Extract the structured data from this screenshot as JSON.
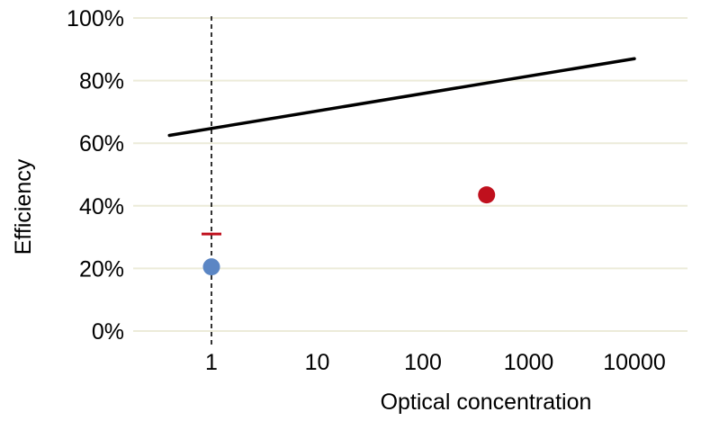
{
  "chart_data": {
    "type": "scatter",
    "xlabel": "Optical concentration",
    "ylabel": "Efficiency",
    "x_scale": "log",
    "xlim": [
      0.4,
      30000
    ],
    "ylim": [
      0,
      100
    ],
    "x_ticks": [
      1,
      10,
      100,
      1000,
      10000
    ],
    "x_tick_labels": [
      "1",
      "10",
      "100",
      "1000",
      "10000"
    ],
    "y_ticks": [
      0,
      20,
      40,
      60,
      80,
      100
    ],
    "y_tick_labels": [
      "0%",
      "20%",
      "40%",
      "60%",
      "80%",
      "100%"
    ],
    "grid": "horizontal",
    "grid_color": "#ecebd9",
    "reference_line": {
      "x": 1,
      "style": "dashed",
      "color": "#000000"
    },
    "limit_line": {
      "x": [
        0.4,
        10000
      ],
      "y": [
        62.5,
        87
      ],
      "color": "#000000"
    },
    "points": [
      {
        "x": 1,
        "y": 20.5,
        "color": "#5b86c4"
      },
      {
        "x": 400,
        "y": 43.5,
        "color": "#c0101d"
      }
    ],
    "markers": [
      {
        "x": 1,
        "y": 31,
        "shape": "dash",
        "color": "#c0101d"
      }
    ]
  }
}
